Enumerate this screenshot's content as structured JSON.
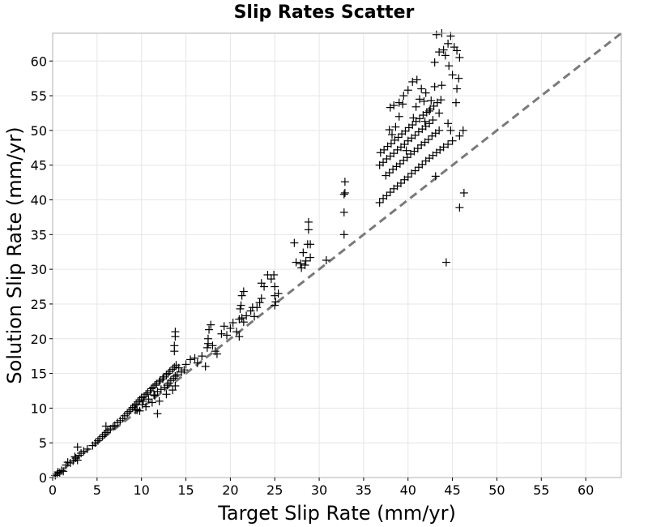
{
  "chart_data": {
    "type": "scatter",
    "title": "Slip Rates Scatter",
    "xlabel": "Target Slip Rate (mm/yr)",
    "ylabel": "Solution Slip Rate (mm/yr)",
    "xlim": [
      0,
      64
    ],
    "ylim": [
      0,
      64
    ],
    "xticks": [
      0,
      5,
      10,
      15,
      20,
      25,
      30,
      35,
      40,
      45,
      50,
      55,
      60
    ],
    "yticks": [
      0,
      5,
      10,
      15,
      20,
      25,
      30,
      35,
      40,
      45,
      50,
      55,
      60
    ],
    "grid": true,
    "marker": "+",
    "marker_color": "#000000",
    "reference_line": {
      "style": "dashed",
      "color": "#7a7a7a",
      "from": [
        0,
        0
      ],
      "to": [
        64,
        64
      ]
    },
    "points": [
      [
        0.3,
        0.3
      ],
      [
        0.5,
        0.5
      ],
      [
        0.8,
        0.7
      ],
      [
        1.0,
        1.0
      ],
      [
        1.2,
        0.9
      ],
      [
        0.6,
        0.8
      ],
      [
        1.5,
        1.8
      ],
      [
        1.7,
        2.2
      ],
      [
        2.0,
        2.1
      ],
      [
        2.3,
        2.4
      ],
      [
        2.6,
        2.8
      ],
      [
        2.8,
        2.5
      ],
      [
        2.5,
        3.0
      ],
      [
        2.8,
        4.4
      ],
      [
        3.0,
        3.2
      ],
      [
        3.2,
        3.5
      ],
      [
        3.5,
        3.8
      ],
      [
        3.9,
        4.1
      ],
      [
        4.5,
        4.6
      ],
      [
        4.8,
        5.0
      ],
      [
        5.1,
        5.3
      ],
      [
        5.3,
        5.6
      ],
      [
        5.6,
        5.9
      ],
      [
        5.8,
        6.2
      ],
      [
        6.0,
        6.5
      ],
      [
        6.2,
        6.8
      ],
      [
        6.5,
        7.0
      ],
      [
        6.8,
        7.3
      ],
      [
        7.0,
        7.5
      ],
      [
        6.0,
        7.4
      ],
      [
        7.3,
        7.9
      ],
      [
        7.6,
        8.2
      ],
      [
        7.9,
        8.5
      ],
      [
        8.1,
        8.9
      ],
      [
        8.4,
        9.2
      ],
      [
        8.6,
        9.5
      ],
      [
        8.8,
        9.8
      ],
      [
        9.0,
        10.1
      ],
      [
        9.2,
        10.4
      ],
      [
        9.4,
        10.6
      ],
      [
        9.5,
        9.7
      ],
      [
        9.6,
        10.9
      ],
      [
        9.8,
        11.2
      ],
      [
        10.0,
        11.5
      ],
      [
        10.2,
        11.0
      ],
      [
        10.3,
        11.7
      ],
      [
        10.5,
        12.0
      ],
      [
        10.7,
        12.2
      ],
      [
        10.8,
        11.3
      ],
      [
        11.0,
        12.5
      ],
      [
        11.1,
        12.8
      ],
      [
        11.3,
        13.0
      ],
      [
        11.4,
        11.9
      ],
      [
        11.5,
        13.3
      ],
      [
        11.7,
        13.5
      ],
      [
        11.8,
        12.4
      ],
      [
        12.0,
        13.8
      ],
      [
        12.1,
        14.0
      ],
      [
        12.2,
        12.7
      ],
      [
        12.4,
        14.2
      ],
      [
        12.5,
        14.5
      ],
      [
        12.6,
        13.0
      ],
      [
        12.8,
        14.8
      ],
      [
        12.9,
        13.3
      ],
      [
        13.0,
        15.0
      ],
      [
        13.1,
        13.6
      ],
      [
        13.2,
        15.3
      ],
      [
        13.3,
        14.0
      ],
      [
        13.5,
        15.6
      ],
      [
        13.6,
        14.3
      ],
      [
        13.7,
        15.9
      ],
      [
        13.8,
        14.6
      ],
      [
        13.9,
        16.2
      ],
      [
        14.0,
        14.8
      ],
      [
        13.8,
        13.2
      ],
      [
        12.0,
        11.0
      ],
      [
        11.5,
        11.8
      ],
      [
        11.8,
        9.2
      ],
      [
        12.8,
        12.0
      ],
      [
        13.5,
        12.6
      ],
      [
        10.5,
        10.2
      ],
      [
        9.8,
        9.6
      ],
      [
        11.2,
        10.8
      ],
      [
        10.1,
        10.5
      ],
      [
        9.3,
        9.8
      ],
      [
        13.7,
        18.2
      ],
      [
        13.7,
        19.0
      ],
      [
        13.8,
        20.3
      ],
      [
        13.8,
        21.0
      ],
      [
        14.2,
        15.8
      ],
      [
        14.5,
        15.2
      ],
      [
        14.8,
        15.5
      ],
      [
        15.0,
        16.3
      ],
      [
        15.5,
        17.0
      ],
      [
        16.0,
        17.2
      ],
      [
        16.3,
        16.5
      ],
      [
        16.8,
        17.5
      ],
      [
        17.2,
        16.0
      ],
      [
        17.4,
        18.7
      ],
      [
        17.5,
        19.3
      ],
      [
        17.5,
        20.0
      ],
      [
        17.6,
        21.3
      ],
      [
        17.8,
        22.0
      ],
      [
        18.0,
        19.0
      ],
      [
        18.3,
        18.2
      ],
      [
        18.5,
        17.8
      ],
      [
        19.0,
        20.7
      ],
      [
        19.3,
        21.8
      ],
      [
        19.6,
        20.5
      ],
      [
        20.0,
        21.5
      ],
      [
        20.3,
        22.3
      ],
      [
        20.7,
        21.0
      ],
      [
        21.0,
        22.8
      ],
      [
        21.1,
        24.3
      ],
      [
        21.2,
        24.8
      ],
      [
        21.3,
        26.2
      ],
      [
        21.5,
        26.8
      ],
      [
        21.3,
        23.0
      ],
      [
        21.5,
        22.4
      ],
      [
        21.0,
        20.3
      ],
      [
        21.8,
        23.3
      ],
      [
        22.3,
        24.0
      ],
      [
        22.5,
        24.5
      ],
      [
        22.7,
        23.2
      ],
      [
        23.0,
        24.5
      ],
      [
        23.3,
        25.2
      ],
      [
        23.5,
        25.8
      ],
      [
        23.5,
        28.0
      ],
      [
        23.8,
        27.5
      ],
      [
        24.2,
        29.2
      ],
      [
        24.6,
        28.6
      ],
      [
        24.9,
        29.2
      ],
      [
        25.0,
        26.2
      ],
      [
        25.0,
        27.5
      ],
      [
        25.1,
        25.3
      ],
      [
        25.0,
        24.8
      ],
      [
        25.4,
        26.5
      ],
      [
        27.2,
        33.8
      ],
      [
        27.4,
        31.0
      ],
      [
        27.9,
        30.8
      ],
      [
        28.2,
        32.4
      ],
      [
        28.5,
        31.2
      ],
      [
        28.7,
        33.6
      ],
      [
        28.8,
        35.7
      ],
      [
        28.8,
        36.8
      ],
      [
        29.0,
        31.7
      ],
      [
        29.0,
        33.6
      ],
      [
        28.4,
        30.6
      ],
      [
        28.0,
        30.2
      ],
      [
        30.8,
        31.3
      ],
      [
        32.8,
        35.0
      ],
      [
        32.8,
        38.2
      ],
      [
        32.8,
        40.8
      ],
      [
        32.9,
        41.0
      ],
      [
        32.9,
        42.6
      ],
      [
        36.8,
        39.6
      ],
      [
        37.2,
        40.2
      ],
      [
        37.6,
        40.6
      ],
      [
        38.0,
        41.1
      ],
      [
        38.4,
        41.6
      ],
      [
        38.8,
        42.0
      ],
      [
        39.2,
        42.4
      ],
      [
        39.6,
        42.9
      ],
      [
        40.0,
        43.3
      ],
      [
        40.4,
        43.8
      ],
      [
        40.8,
        44.2
      ],
      [
        41.2,
        44.7
      ],
      [
        41.6,
        45.1
      ],
      [
        42.0,
        45.6
      ],
      [
        42.4,
        46.0
      ],
      [
        42.8,
        46.4
      ],
      [
        43.2,
        46.8
      ],
      [
        43.6,
        47.2
      ],
      [
        44.0,
        47.6
      ],
      [
        44.5,
        48.0
      ],
      [
        45.0,
        48.5
      ],
      [
        45.8,
        49.2
      ],
      [
        36.8,
        45.0
      ],
      [
        37.2,
        45.4
      ],
      [
        37.6,
        45.9
      ],
      [
        38.0,
        46.3
      ],
      [
        38.4,
        46.7
      ],
      [
        38.8,
        47.2
      ],
      [
        39.2,
        47.6
      ],
      [
        39.6,
        48.0
      ],
      [
        40.0,
        48.5
      ],
      [
        40.4,
        48.9
      ],
      [
        40.8,
        49.3
      ],
      [
        41.2,
        49.8
      ],
      [
        41.6,
        50.2
      ],
      [
        42.0,
        50.6
      ],
      [
        42.4,
        51.0
      ],
      [
        42.8,
        51.5
      ],
      [
        36.9,
        46.8
      ],
      [
        37.3,
        47.2
      ],
      [
        37.7,
        47.7
      ],
      [
        38.1,
        48.1
      ],
      [
        38.5,
        48.6
      ],
      [
        38.9,
        49.0
      ],
      [
        39.3,
        49.5
      ],
      [
        39.7,
        49.9
      ],
      [
        40.1,
        50.4
      ],
      [
        40.5,
        50.8
      ],
      [
        40.9,
        51.3
      ],
      [
        41.3,
        51.7
      ],
      [
        41.7,
        52.2
      ],
      [
        42.1,
        52.6
      ],
      [
        42.5,
        53.1
      ],
      [
        42.9,
        53.5
      ],
      [
        43.3,
        54.0
      ],
      [
        43.7,
        54.4
      ],
      [
        37.5,
        43.5
      ],
      [
        37.9,
        43.9
      ],
      [
        38.3,
        44.4
      ],
      [
        38.7,
        44.8
      ],
      [
        39.1,
        45.2
      ],
      [
        39.5,
        45.7
      ],
      [
        39.9,
        46.1
      ],
      [
        40.3,
        46.6
      ],
      [
        40.7,
        47.0
      ],
      [
        41.1,
        47.4
      ],
      [
        41.5,
        47.9
      ],
      [
        41.9,
        48.3
      ],
      [
        42.3,
        48.7
      ],
      [
        42.7,
        49.2
      ],
      [
        43.1,
        49.6
      ],
      [
        43.5,
        50.0
      ],
      [
        38.0,
        53.3
      ],
      [
        38.4,
        53.6
      ],
      [
        39.0,
        54.0
      ],
      [
        39.5,
        55.0
      ],
      [
        40.0,
        55.8
      ],
      [
        40.5,
        57.0
      ],
      [
        41.0,
        57.3
      ],
      [
        41.5,
        56.0
      ],
      [
        42.0,
        55.4
      ],
      [
        42.6,
        54.3
      ],
      [
        43.0,
        56.3
      ],
      [
        43.5,
        52.5
      ],
      [
        43.8,
        56.5
      ],
      [
        44.2,
        60.8
      ],
      [
        44.6,
        59.3
      ],
      [
        45.0,
        58.0
      ],
      [
        43.0,
        59.8
      ],
      [
        43.5,
        61.3
      ],
      [
        44.0,
        61.6
      ],
      [
        44.5,
        62.5
      ],
      [
        43.2,
        63.8
      ],
      [
        43.8,
        64.0
      ],
      [
        44.8,
        63.6
      ],
      [
        45.2,
        62.0
      ],
      [
        45.5,
        61.5
      ],
      [
        45.8,
        60.5
      ],
      [
        45.7,
        57.5
      ],
      [
        45.5,
        56.0
      ],
      [
        45.4,
        54.0
      ],
      [
        46.2,
        50.0
      ],
      [
        46.3,
        41.0
      ],
      [
        45.8,
        38.9
      ],
      [
        44.3,
        31.0
      ],
      [
        43.1,
        43.4
      ],
      [
        44.5,
        51.0
      ],
      [
        44.8,
        50.0
      ],
      [
        41.3,
        54.5
      ],
      [
        41.8,
        54.2
      ],
      [
        42.4,
        52.8
      ],
      [
        40.6,
        51.8
      ],
      [
        39.0,
        52.0
      ],
      [
        39.4,
        53.8
      ],
      [
        40.9,
        53.4
      ],
      [
        38.6,
        50.5
      ],
      [
        38.2,
        49.4
      ],
      [
        37.9,
        50.1
      ],
      [
        39.8,
        47.1
      ],
      [
        41.9,
        51.3
      ]
    ]
  }
}
